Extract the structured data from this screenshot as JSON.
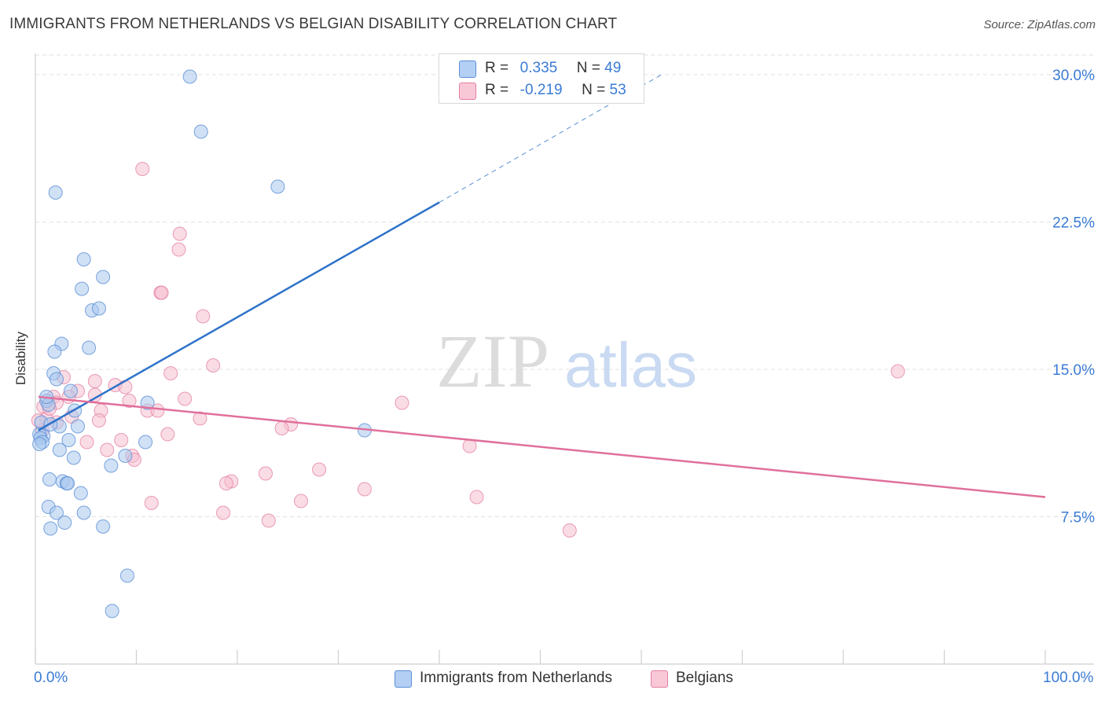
{
  "title": "IMMIGRANTS FROM NETHERLANDS VS BELGIAN DISABILITY CORRELATION CHART",
  "source": "Source: ZipAtlas.com",
  "watermark": {
    "zip": "ZIP",
    "atlas": "atlas"
  },
  "legend": {
    "rows": [
      {
        "r_label": "R =",
        "r_value": "0.335",
        "n_label": "N =",
        "n_value": "49"
      },
      {
        "r_label": "R =",
        "r_value": "-0.219",
        "n_label": "N =",
        "n_value": "53"
      }
    ]
  },
  "bottom_legend": {
    "series1": "Immigrants from Netherlands",
    "series2": "Belgians"
  },
  "x_ticks": {
    "left": "0.0%",
    "right": "100.0%"
  },
  "colors": {
    "blue_fill": "#a9c9ef",
    "blue_stroke": "#5b8fd6",
    "blue_line": "#2f73c9",
    "pink_fill": "#f6bfd0",
    "pink_stroke": "#e37ea0",
    "pink_line": "#e0709b",
    "axis_text": "#3a7bd5",
    "grid": "#e2e2e2"
  },
  "chart_data": {
    "type": "scatter",
    "title": "IMMIGRANTS FROM NETHERLANDS VS BELGIAN DISABILITY CORRELATION CHART",
    "xlabel": "",
    "ylabel": "Disability",
    "xlim": [
      0,
      100
    ],
    "ylim": [
      0,
      31
    ],
    "y_ticks": [
      7.5,
      15.0,
      22.5,
      30.0
    ],
    "y_tick_labels": [
      "7.5%",
      "15.0%",
      "22.5%",
      "30.0%"
    ],
    "grid": true,
    "series": [
      {
        "name": "Immigrants from Netherlands",
        "R": 0.335,
        "N": 49,
        "color": "#a9c9ef",
        "trend": {
          "x": [
            0.3,
            40.0
          ],
          "y": [
            11.9,
            23.5
          ],
          "dashed_to": [
            62.0,
            30.0
          ]
        },
        "points": [
          [
            15.3,
            29.9
          ],
          [
            16.4,
            27.1
          ],
          [
            2.0,
            24.0
          ],
          [
            24.0,
            24.3
          ],
          [
            4.8,
            20.6
          ],
          [
            6.7,
            19.7
          ],
          [
            4.6,
            19.1
          ],
          [
            5.6,
            18.0
          ],
          [
            6.3,
            18.1
          ],
          [
            2.6,
            16.3
          ],
          [
            5.3,
            16.1
          ],
          [
            1.9,
            15.9
          ],
          [
            1.8,
            14.8
          ],
          [
            2.1,
            14.5
          ],
          [
            3.5,
            13.9
          ],
          [
            1.1,
            13.4
          ],
          [
            1.3,
            13.2
          ],
          [
            11.1,
            13.3
          ],
          [
            3.9,
            12.9
          ],
          [
            2.4,
            12.1
          ],
          [
            0.6,
            12.3
          ],
          [
            1.5,
            12.2
          ],
          [
            4.2,
            12.1
          ],
          [
            0.8,
            11.6
          ],
          [
            0.4,
            11.7
          ],
          [
            0.5,
            11.5
          ],
          [
            0.7,
            11.3
          ],
          [
            0.4,
            11.2
          ],
          [
            3.3,
            11.4
          ],
          [
            10.9,
            11.3
          ],
          [
            32.6,
            11.9
          ],
          [
            2.4,
            10.9
          ],
          [
            3.8,
            10.5
          ],
          [
            8.9,
            10.6
          ],
          [
            7.5,
            10.1
          ],
          [
            1.4,
            9.4
          ],
          [
            2.7,
            9.3
          ],
          [
            3.1,
            9.2
          ],
          [
            3.2,
            9.2
          ],
          [
            4.5,
            8.7
          ],
          [
            1.3,
            8.0
          ],
          [
            2.1,
            7.7
          ],
          [
            4.8,
            7.7
          ],
          [
            2.9,
            7.2
          ],
          [
            1.5,
            6.9
          ],
          [
            6.7,
            7.0
          ],
          [
            9.1,
            4.5
          ],
          [
            7.6,
            2.7
          ],
          [
            1.1,
            13.6
          ]
        ]
      },
      {
        "name": "Belgians",
        "R": -0.219,
        "N": 53,
        "color": "#f6bfd0",
        "trend": {
          "x": [
            0.3,
            100.0
          ],
          "y": [
            13.6,
            8.5
          ]
        },
        "points": [
          [
            10.6,
            25.2
          ],
          [
            14.3,
            21.9
          ],
          [
            14.2,
            21.1
          ],
          [
            12.4,
            18.9
          ],
          [
            12.5,
            18.9
          ],
          [
            16.6,
            17.7
          ],
          [
            17.6,
            15.2
          ],
          [
            85.4,
            14.9
          ],
          [
            13.4,
            14.8
          ],
          [
            2.8,
            14.6
          ],
          [
            5.9,
            14.4
          ],
          [
            7.9,
            14.2
          ],
          [
            8.9,
            14.1
          ],
          [
            4.2,
            13.9
          ],
          [
            1.8,
            13.6
          ],
          [
            3.3,
            13.6
          ],
          [
            5.9,
            13.7
          ],
          [
            14.8,
            13.5
          ],
          [
            9.3,
            13.4
          ],
          [
            36.3,
            13.3
          ],
          [
            2.1,
            13.3
          ],
          [
            0.8,
            13.1
          ],
          [
            11.1,
            12.9
          ],
          [
            12.1,
            12.9
          ],
          [
            6.5,
            12.9
          ],
          [
            3.6,
            12.6
          ],
          [
            1.1,
            12.5
          ],
          [
            16.3,
            12.5
          ],
          [
            6.3,
            12.4
          ],
          [
            2.1,
            12.3
          ],
          [
            25.3,
            12.2
          ],
          [
            24.4,
            12.0
          ],
          [
            0.7,
            11.9
          ],
          [
            13.1,
            11.7
          ],
          [
            8.5,
            11.4
          ],
          [
            5.1,
            11.3
          ],
          [
            43.0,
            11.1
          ],
          [
            7.1,
            10.9
          ],
          [
            9.6,
            10.6
          ],
          [
            9.8,
            10.4
          ],
          [
            28.1,
            9.9
          ],
          [
            22.8,
            9.7
          ],
          [
            19.4,
            9.3
          ],
          [
            18.9,
            9.2
          ],
          [
            32.6,
            8.9
          ],
          [
            43.7,
            8.5
          ],
          [
            26.3,
            8.3
          ],
          [
            11.5,
            8.2
          ],
          [
            18.6,
            7.7
          ],
          [
            23.1,
            7.3
          ],
          [
            52.9,
            6.8
          ],
          [
            1.4,
            13.0
          ],
          [
            0.3,
            12.4
          ]
        ]
      }
    ]
  }
}
